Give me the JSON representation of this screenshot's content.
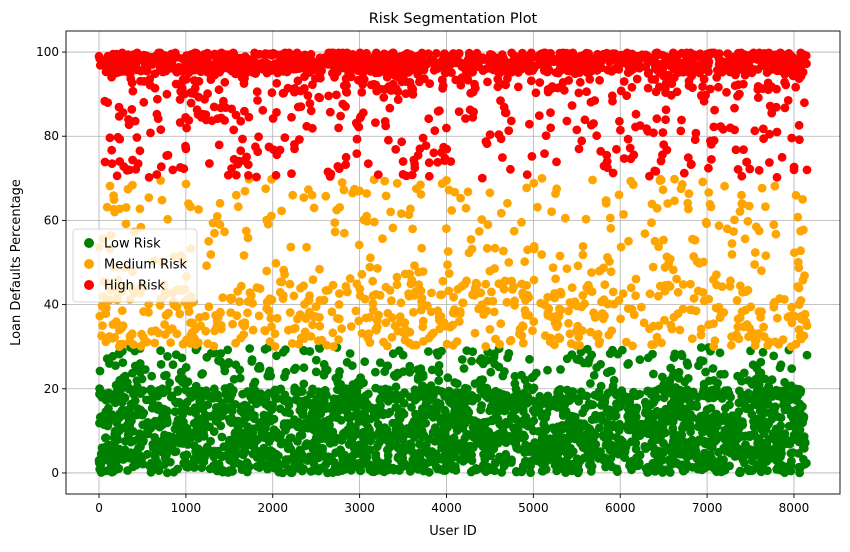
{
  "chart_data": {
    "type": "scatter",
    "title": "Risk Segmentation Plot",
    "xlabel": "User ID",
    "ylabel": "Loan Defaults Percentage",
    "xlim": [
      -380,
      8530
    ],
    "ylim": [
      -5,
      105
    ],
    "grid": true,
    "legend_position": "center-left",
    "x_ticks": [
      0,
      1000,
      2000,
      3000,
      4000,
      5000,
      6000,
      7000,
      8000
    ],
    "x_tick_labels": [
      "0",
      "1000",
      "2000",
      "3000",
      "4000",
      "5000",
      "6000",
      "7000",
      "8000"
    ],
    "y_ticks": [
      0,
      20,
      40,
      60,
      80,
      100
    ],
    "y_tick_labels": [
      "0",
      "20",
      "40",
      "60",
      "80",
      "100"
    ],
    "series": [
      {
        "name": "Low Risk",
        "color": "#008000",
        "description": "Users with loan defaults percentage in [0, 30); densest band between 0 and 20",
        "x_range": [
          0,
          8150
        ],
        "y_range": [
          0,
          30
        ],
        "approx_points": 7200,
        "sample_points": [
          [
            0,
            3
          ],
          [
            120,
            26
          ],
          [
            560,
            12
          ],
          [
            1000,
            8
          ],
          [
            1500,
            18
          ],
          [
            2000,
            5
          ],
          [
            2500,
            24
          ],
          [
            3000,
            14
          ],
          [
            3500,
            28
          ],
          [
            4000,
            2
          ],
          [
            4500,
            19
          ],
          [
            5000,
            10
          ],
          [
            5500,
            27
          ],
          [
            6000,
            6
          ],
          [
            6500,
            21
          ],
          [
            7000,
            15
          ],
          [
            7500,
            29
          ],
          [
            8000,
            9
          ],
          [
            8150,
            28
          ]
        ]
      },
      {
        "name": "Medium Risk",
        "color": "#FFA500",
        "description": "Users with loan defaults percentage in [30, 70)",
        "x_range": [
          0,
          8150
        ],
        "y_range": [
          30,
          70
        ],
        "approx_points": 800,
        "sample_points": [
          [
            40,
            35
          ],
          [
            180,
            62
          ],
          [
            800,
            38
          ],
          [
            1030,
            64
          ],
          [
            1580,
            66
          ],
          [
            2230,
            66
          ],
          [
            2800,
            69
          ],
          [
            3000,
            67
          ],
          [
            4000,
            69.5
          ],
          [
            5100,
            70
          ],
          [
            6150,
            68.5
          ],
          [
            6700,
            67.5
          ],
          [
            7400,
            64
          ],
          [
            8100,
            65
          ],
          [
            8150,
            35
          ]
        ]
      },
      {
        "name": "High Risk",
        "color": "#FF0000",
        "description": "Users with loan defaults percentage in [70, 100]; densest band between 90 and 100",
        "x_range": [
          0,
          8150
        ],
        "y_range": [
          70,
          100
        ],
        "approx_points": 1500,
        "sample_points": [
          [
            0,
            99
          ],
          [
            100,
            88
          ],
          [
            150,
            73.5
          ],
          [
            350,
            72
          ],
          [
            450,
            73.5
          ],
          [
            850,
            72
          ],
          [
            1000,
            77
          ],
          [
            1550,
            81.5
          ],
          [
            1800,
            77.5
          ],
          [
            2250,
            77
          ],
          [
            3100,
            73.5
          ],
          [
            3500,
            74
          ],
          [
            4050,
            74
          ],
          [
            5200,
            82
          ],
          [
            5500,
            81.5
          ],
          [
            5850,
            74
          ],
          [
            6500,
            78
          ],
          [
            7050,
            74.5
          ],
          [
            7400,
            70.5
          ],
          [
            8000,
            72
          ],
          [
            8150,
            72
          ]
        ]
      }
    ],
    "legend": [
      "Low Risk",
      "Medium Risk",
      "High Risk"
    ]
  }
}
